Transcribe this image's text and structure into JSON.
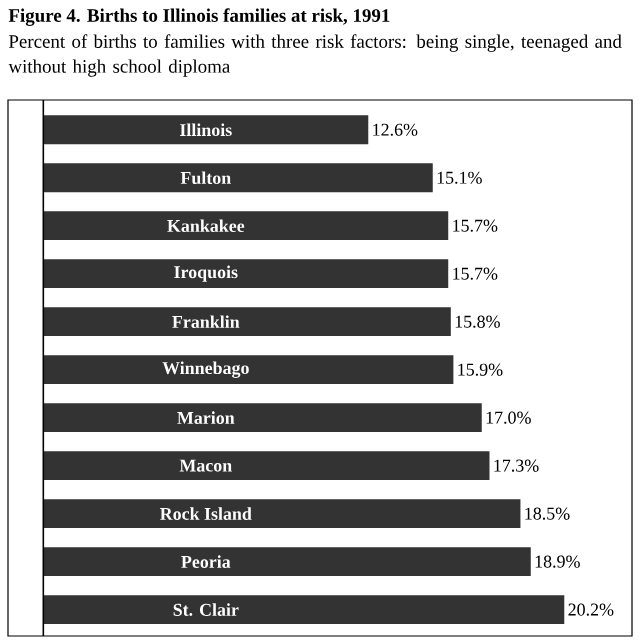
{
  "chart_data": {
    "type": "bar",
    "orientation": "horizontal",
    "title": "Figure 4. Births to Illinois families at risk, 1991",
    "subtitle": "Percent of births to families with three risk factors: being single, teenaged and without high school diploma",
    "categories": [
      "Illinois",
      "Fulton",
      "Kankakee",
      "Iroquois",
      "Franklin",
      "Winnebago",
      "Marion",
      "Macon",
      "Rock Island",
      "Peoria",
      "St. Clair"
    ],
    "values": [
      12.6,
      15.1,
      15.7,
      15.7,
      15.8,
      15.9,
      17.0,
      17.3,
      18.5,
      18.9,
      20.2
    ],
    "value_labels": [
      "12.6%",
      "15.1%",
      "15.7%",
      "15.7%",
      "15.8%",
      "15.9%",
      "17.0%",
      "17.3%",
      "18.5%",
      "18.9%",
      "20.2%"
    ],
    "color": "#333333"
  }
}
